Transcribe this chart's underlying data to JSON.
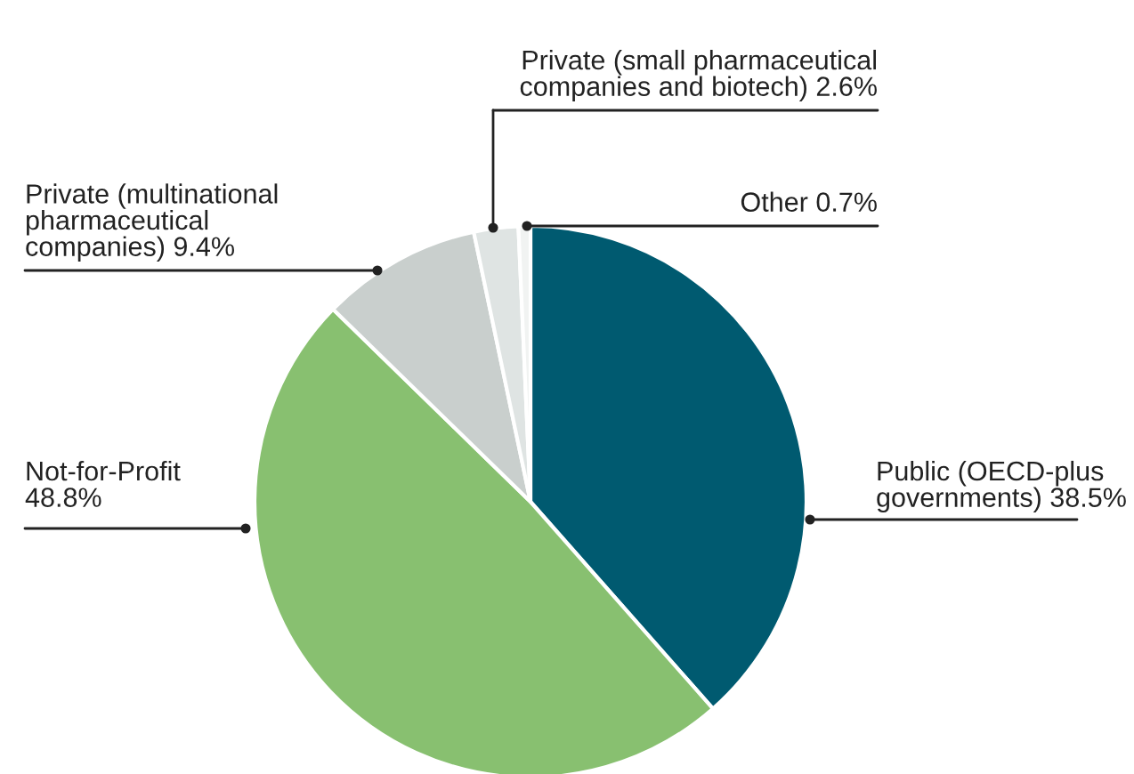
{
  "chart_data": {
    "type": "pie",
    "categories": [
      "Public (OECD-plus\ngovernments)",
      "Not-for-Profit",
      "Private (multinational\npharmaceutical\ncompanies)",
      "Private (small pharmaceutical\ncompanies and biotech)",
      "Other"
    ],
    "values": [
      38.5,
      48.8,
      9.4,
      2.6,
      0.7
    ],
    "colors": [
      "#005a70",
      "#88c070",
      "#c9cfcd",
      "#dfe4e3",
      "#f1f3f2"
    ],
    "value_labels": [
      "38.5%",
      "48.8%",
      "9.4%",
      "2.6%",
      "0.7%"
    ],
    "legend": false
  }
}
